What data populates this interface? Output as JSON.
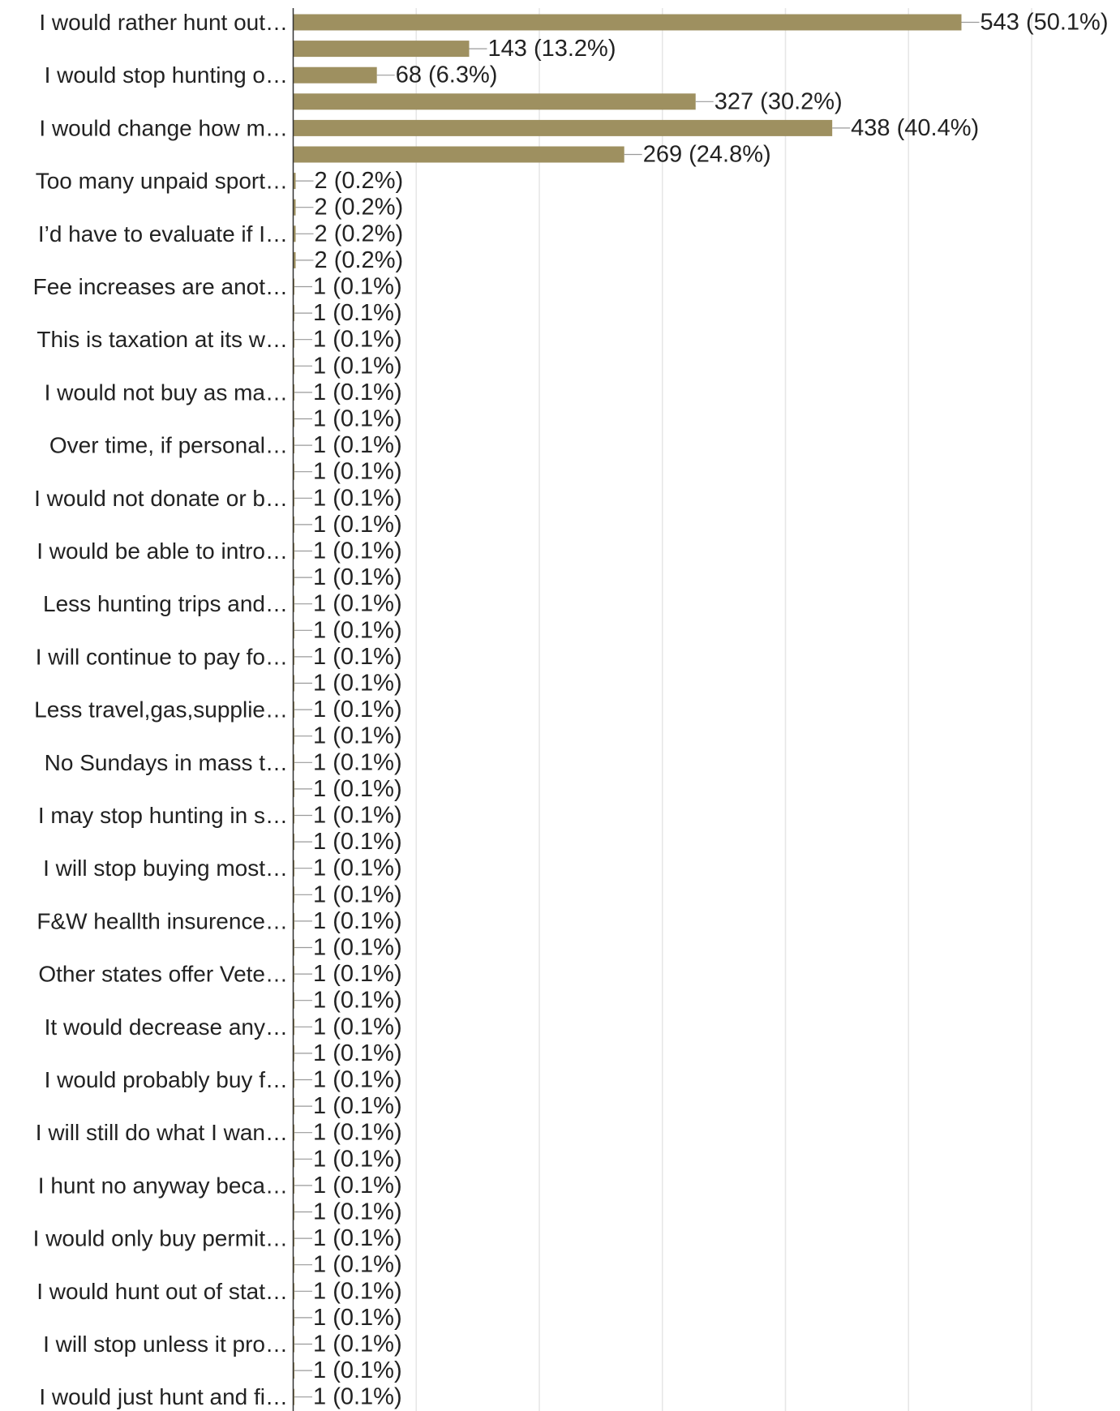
{
  "chart_data": {
    "type": "bar",
    "orientation": "horizontal",
    "title": "",
    "xlabel": "",
    "ylabel": "",
    "xlim": [
      0,
      600
    ],
    "grid": true,
    "bar_color": "#9e9060",
    "categories": [
      "I would rather hunt out…",
      "",
      "I would stop hunting o…",
      "",
      "I would change how m…",
      "",
      "Too many unpaid sport…",
      "",
      "I’d have to evaluate if I…",
      "",
      "Fee increases are anot…",
      "",
      "This is taxation at its w…",
      "",
      "I would not buy as ma…",
      "",
      "Over time, if personal…",
      "",
      "I would not donate or b…",
      "",
      "I would be able to intro…",
      "",
      "Less hunting trips and…",
      "",
      "I will continue to pay fo…",
      "",
      "Less travel,gas,supplie…",
      "",
      "No Sundays in mass t…",
      "",
      "I may stop hunting in s…",
      "",
      "I will stop buying most…",
      "",
      "F&W heallth insurence…",
      "",
      "Other states offer Vete…",
      "",
      "It would decrease any…",
      "",
      "I would probably buy f…",
      "",
      "I will still do what I wan…",
      "",
      "I hunt no anyway beca…",
      "",
      "I would only buy permit…",
      "",
      "I would hunt out of stat…",
      "",
      "I will stop unless it pro…",
      "",
      "I would just hunt and fi…"
    ],
    "values": [
      543,
      143,
      68,
      327,
      438,
      269,
      2,
      2,
      2,
      2,
      1,
      1,
      1,
      1,
      1,
      1,
      1,
      1,
      1,
      1,
      1,
      1,
      1,
      1,
      1,
      1,
      1,
      1,
      1,
      1,
      1,
      1,
      1,
      1,
      1,
      1,
      1,
      1,
      1,
      1,
      1,
      1,
      1,
      1,
      1,
      1,
      1,
      1,
      1,
      1,
      1,
      1,
      1
    ],
    "value_labels": [
      "543 (50.1%)",
      "143 (13.2%)",
      "68 (6.3%)",
      "327 (30.2%)",
      "438 (40.4%)",
      "269 (24.8%)",
      "2 (0.2%)",
      "2 (0.2%)",
      "2 (0.2%)",
      "2 (0.2%)",
      "1 (0.1%)",
      "1 (0.1%)",
      "1 (0.1%)",
      "1 (0.1%)",
      "1 (0.1%)",
      "1 (0.1%)",
      "1 (0.1%)",
      "1 (0.1%)",
      "1 (0.1%)",
      "1 (0.1%)",
      "1 (0.1%)",
      "1 (0.1%)",
      "1 (0.1%)",
      "1 (0.1%)",
      "1 (0.1%)",
      "1 (0.1%)",
      "1 (0.1%)",
      "1 (0.1%)",
      "1 (0.1%)",
      "1 (0.1%)",
      "1 (0.1%)",
      "1 (0.1%)",
      "1 (0.1%)",
      "1 (0.1%)",
      "1 (0.1%)",
      "1 (0.1%)",
      "1 (0.1%)",
      "1 (0.1%)",
      "1 (0.1%)",
      "1 (0.1%)",
      "1 (0.1%)",
      "1 (0.1%)",
      "1 (0.1%)",
      "1 (0.1%)",
      "1 (0.1%)",
      "1 (0.1%)",
      "1 (0.1%)",
      "1 (0.1%)",
      "1 (0.1%)",
      "1 (0.1%)",
      "1 (0.1%)",
      "1 (0.1%)",
      "1 (0.1%)"
    ]
  }
}
